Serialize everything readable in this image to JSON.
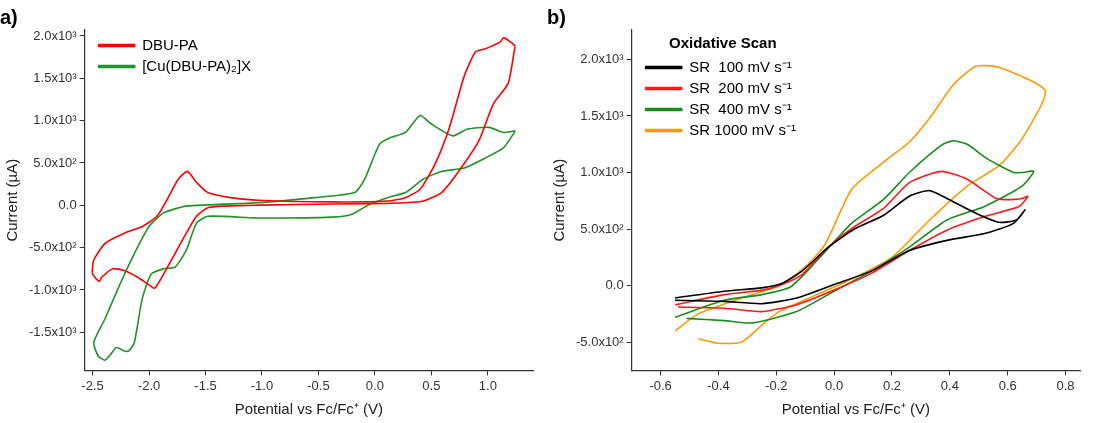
{
  "chart_data": [
    {
      "type": "line",
      "title": "a)",
      "xlabel": "Potential vs Fc/Fc⁺ (V)",
      "ylabel": "Current (µA)",
      "xlim": [
        -2.57,
        1.4
      ],
      "ylim": [
        -1950,
        2070
      ],
      "xticks": [
        {
          "value": -2.5,
          "label": "-2.5"
        },
        {
          "value": -2,
          "label": "-2.0"
        },
        {
          "value": -1.5,
          "label": "-1.5"
        },
        {
          "value": -1,
          "label": "-1.0"
        },
        {
          "value": -0.5,
          "label": "-0.5"
        },
        {
          "value": 0,
          "label": "0.0"
        },
        {
          "value": 0.5,
          "label": "0.5"
        },
        {
          "value": 1,
          "label": "1.0"
        }
      ],
      "yticks": [
        {
          "value": -1500,
          "label": "-1.5x10³"
        },
        {
          "value": -1000,
          "label": "-1.0x10³"
        },
        {
          "value": -500,
          "label": "-5.0x10²"
        },
        {
          "value": 0,
          "label": "0.0"
        },
        {
          "value": 500,
          "label": "5.0x10²"
        },
        {
          "value": 1000,
          "label": "1.0x10³"
        },
        {
          "value": 1500,
          "label": "1.5x10³"
        },
        {
          "value": 2000,
          "label": "2.0x10³"
        }
      ],
      "grid": false,
      "legend": "top left",
      "marker": "none",
      "line_style": "solid",
      "series": [
        {
          "name": "DBU-PA",
          "color": "#ff0000",
          "x": [
            1.24,
            1.18,
            1.05,
            0.92,
            0.72,
            0.59,
            0.43,
            0.27,
            -0.05,
            -0.7,
            -1.35,
            -1.48,
            -1.58,
            -1.67,
            -1.77,
            -1.87,
            -1.95,
            -2.0,
            -2.1,
            -2.22,
            -2.32,
            -2.42,
            -2.44,
            -2.5,
            -2.49,
            -2.39,
            -2.22,
            -2.06,
            -1.93,
            -1.84,
            -1.74,
            -1.66,
            -1.58,
            -1.48,
            -1.28,
            -1.03,
            -0.38,
            0.11,
            0.27,
            0.4,
            0.53,
            0.66,
            0.79,
            0.89,
            0.98,
            1.11,
            1.14,
            1.2,
            1.245
          ],
          "values": [
            1870,
            1440,
            1200,
            760,
            360,
            150,
            50,
            30,
            20,
            10,
            -10,
            -30,
            -130,
            -330,
            -570,
            -810,
            -980,
            -940,
            -850,
            -770,
            -750,
            -850,
            -900,
            -810,
            -650,
            -450,
            -330,
            -250,
            -130,
            70,
            310,
            400,
            270,
            150,
            90,
            60,
            40,
            50,
            90,
            190,
            480,
            920,
            1520,
            1810,
            1850,
            1930,
            1980,
            1930,
            1880
          ]
        },
        {
          "name": "[Cu(DBU-PA)₂]X",
          "color": "#22922a",
          "x": [
            1.24,
            1.14,
            0.98,
            0.79,
            0.59,
            0.43,
            0.27,
            0.11,
            -0.05,
            -0.21,
            -0.38,
            -1.03,
            -1.48,
            -1.58,
            -1.67,
            -1.77,
            -1.87,
            -1.98,
            -2.06,
            -2.13,
            -2.18,
            -2.22,
            -2.29,
            -2.34,
            -2.39,
            -2.45,
            -2.49,
            -2.39,
            -2.26,
            -2.13,
            -2.0,
            -1.87,
            -1.67,
            -1.03,
            -0.54,
            -0.18,
            -0.09,
            0.04,
            0.14,
            0.27,
            0.4,
            0.5,
            0.69,
            0.82,
            1.01,
            1.14,
            1.245
          ],
          "values": [
            870,
            680,
            560,
            440,
            400,
            310,
            150,
            90,
            10,
            -110,
            -140,
            -150,
            -130,
            -210,
            -530,
            -730,
            -750,
            -810,
            -1100,
            -1620,
            -1720,
            -1720,
            -1680,
            -1760,
            -1830,
            -1780,
            -1620,
            -1340,
            -940,
            -570,
            -250,
            -90,
            -10,
            30,
            90,
            150,
            310,
            720,
            800,
            860,
            1060,
            960,
            820,
            900,
            920,
            860,
            880
          ]
        }
      ]
    },
    {
      "type": "line",
      "title": "b)",
      "xlabel": "Potential vs Fc/Fc⁺ (V)",
      "ylabel": "Current (µA)",
      "legend_title": "Oxidative Scan",
      "xlim": [
        -0.7,
        0.85
      ],
      "ylim": [
        -750,
        2260
      ],
      "xticks": [
        -0.6,
        -0.4,
        -0.2,
        {
          "value": 0,
          "label": "0.0"
        },
        0.2,
        0.4,
        0.6,
        0.8
      ],
      "yticks": [
        {
          "value": -500,
          "label": "-5.0x10²"
        },
        {
          "value": 0,
          "label": "0.0"
        },
        {
          "value": 500,
          "label": "5.0x10²"
        },
        {
          "value": 1000,
          "label": "1.0x10³"
        },
        {
          "value": 1500,
          "label": "1.5x10³"
        },
        {
          "value": 2000,
          "label": "2.0x10³"
        }
      ],
      "grid": false,
      "legend": "top left",
      "marker": "none",
      "line_style": "solid",
      "series": [
        {
          "name": "SR  100 mV s⁻¹",
          "color": "#000000",
          "x": [
            -0.55,
            -0.38,
            -0.25,
            -0.18,
            -0.11,
            -0.02,
            0.07,
            0.17,
            0.26,
            0.33,
            0.39,
            0.49,
            0.57,
            0.63,
            0.66,
            0.62,
            0.52,
            0.39,
            0.26,
            0.13,
            0.0,
            -0.13,
            -0.25,
            -0.38,
            -0.55
          ],
          "values": [
            -110,
            -50,
            -20,
            20,
            130,
            340,
            500,
            620,
            790,
            840,
            770,
            640,
            560,
            580,
            670,
            550,
            460,
            400,
            310,
            130,
            10,
            -110,
            -160,
            -140,
            -130
          ]
        },
        {
          "name": "SR  200 mV s⁻¹",
          "color": "#ff1a1a",
          "x": [
            -0.55,
            -0.38,
            -0.25,
            -0.18,
            -0.11,
            -0.02,
            0.07,
            0.17,
            0.26,
            0.37,
            0.46,
            0.56,
            0.61,
            0.65,
            0.67,
            0.64,
            0.52,
            0.39,
            0.26,
            0.13,
            0.0,
            -0.13,
            -0.25,
            -0.38,
            -0.54
          ],
          "values": [
            -170,
            -80,
            -40,
            10,
            100,
            340,
            520,
            680,
            910,
            1010,
            940,
            770,
            760,
            770,
            790,
            700,
            610,
            490,
            310,
            110,
            -40,
            -170,
            -230,
            -200,
            -190
          ]
        },
        {
          "name": "SR  400 mV s⁻¹",
          "color": "#1a8c1a",
          "x": [
            -0.55,
            -0.38,
            -0.25,
            -0.15,
            -0.06,
            0.06,
            0.17,
            0.26,
            0.37,
            0.41,
            0.46,
            0.53,
            0.62,
            0.65,
            0.69,
            0.65,
            0.52,
            0.39,
            0.26,
            0.13,
            0.0,
            -0.13,
            -0.28,
            -0.38,
            -0.51
          ],
          "values": [
            -280,
            -130,
            -80,
            -10,
            220,
            550,
            760,
            1000,
            1240,
            1280,
            1250,
            1120,
            1000,
            1000,
            1010,
            880,
            700,
            580,
            340,
            130,
            -50,
            -230,
            -330,
            -310,
            -290
          ]
        },
        {
          "name": "SR 1000 mV s⁻¹",
          "color": "#ff9900",
          "x": [
            -0.55,
            -0.47,
            -0.32,
            -0.18,
            -0.09,
            -0.03,
            0.06,
            0.17,
            0.26,
            0.33,
            0.41,
            0.49,
            0.57,
            0.73,
            0.65,
            0.57,
            0.46,
            0.33,
            0.2,
            0.07,
            -0.06,
            -0.19,
            -0.25,
            -0.32,
            -0.4,
            -0.47
          ],
          "values": [
            -400,
            -250,
            -110,
            10,
            190,
            370,
            850,
            1090,
            1270,
            1480,
            1770,
            1940,
            1930,
            1720,
            1300,
            1060,
            880,
            580,
            250,
            70,
            -80,
            -230,
            -350,
            -500,
            -510,
            -470
          ]
        }
      ]
    }
  ]
}
